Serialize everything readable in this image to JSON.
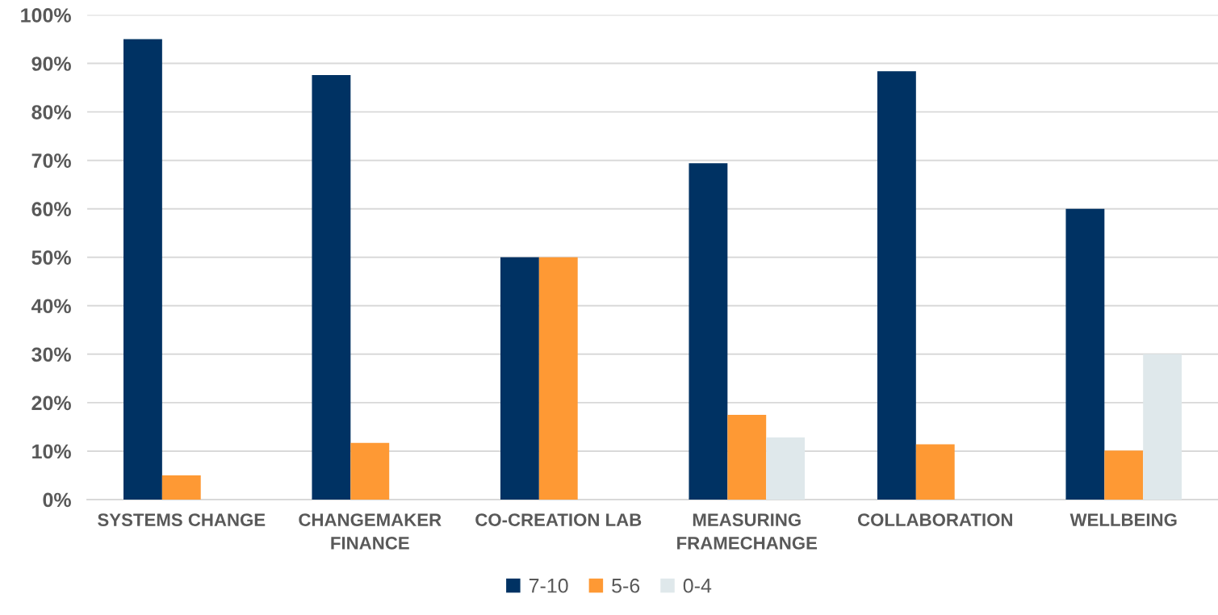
{
  "chart_data": {
    "type": "bar",
    "categories": [
      "SYSTEMS CHANGE",
      "CHANGEMAKER FINANCE",
      "CO-CREATION LAB",
      "MEASURING FRAMECHANGE",
      "COLLABORATION",
      "WELLBEING"
    ],
    "series": [
      {
        "name": "7-10",
        "color": "#003263",
        "values": [
          95,
          87.6,
          50,
          69.4,
          88.4,
          60
        ]
      },
      {
        "name": "5-6",
        "color": "#FE9934",
        "values": [
          5,
          11.7,
          50,
          17.5,
          11.4,
          10.1
        ]
      },
      {
        "name": "0-4",
        "color": "#DFE8EB",
        "values": [
          null,
          null,
          null,
          12.8,
          null,
          30
        ]
      }
    ],
    "ylim": [
      0,
      100
    ],
    "yticks": [
      {
        "value": 0,
        "label": "0%"
      },
      {
        "value": 10,
        "label": "10%"
      },
      {
        "value": 20,
        "label": "20%"
      },
      {
        "value": 30,
        "label": "30%"
      },
      {
        "value": 40,
        "label": "40%"
      },
      {
        "value": 50,
        "label": "50%"
      },
      {
        "value": 60,
        "label": "60%"
      },
      {
        "value": 70,
        "label": "70%"
      },
      {
        "value": 80,
        "label": "80%"
      },
      {
        "value": 90,
        "label": "90%"
      },
      {
        "value": 100,
        "label": "100%"
      }
    ],
    "grid": "y",
    "legend": "bottom"
  }
}
